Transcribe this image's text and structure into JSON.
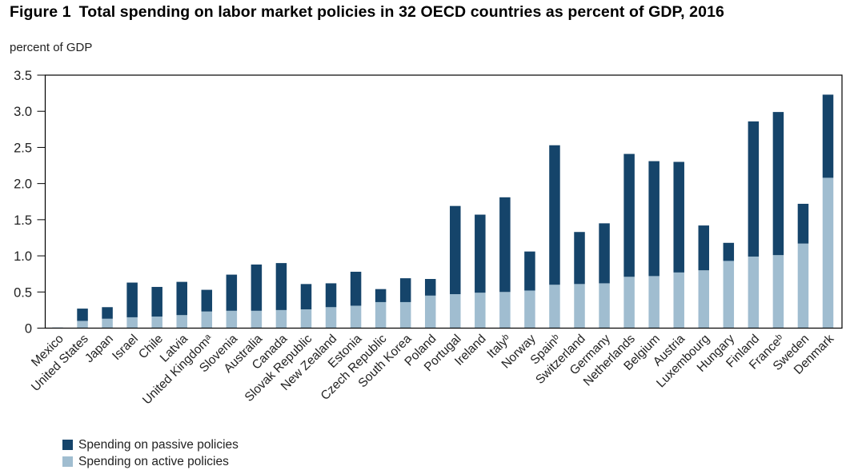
{
  "figure_label": "Figure 1",
  "colors": {
    "passive": "#15446a",
    "active": "#a0bdd0",
    "axis": "#000000"
  },
  "chart_data": {
    "type": "bar",
    "stacked": true,
    "title": "Total spending on labor market policies in 32 OECD countries as percent of GDP, 2016",
    "xlabel": "",
    "ylabel": "percent of GDP",
    "ylim": [
      0,
      3.5
    ],
    "yticks": [
      0,
      0.5,
      1.0,
      1.5,
      2.0,
      2.5,
      3.0,
      3.5
    ],
    "ytick_labels": [
      "0",
      "0.5",
      "1.0",
      "1.5",
      "2.0",
      "2.5",
      "3.0",
      "3.5"
    ],
    "grid": false,
    "legend_position": "bottom-left",
    "categories": [
      "Mexico",
      "United States",
      "Japan",
      "Israel",
      "Chile",
      "Latvia",
      "United Kingdomᵃ",
      "Slovenia",
      "Australia",
      "Canada",
      "Slovak Republic",
      "New Zealand",
      "Estonia",
      "Czech Republic",
      "South Korea",
      "Poland",
      "Portugal",
      "Ireland",
      "Italyᵇ",
      "Norway",
      "Spainᵇ",
      "Switzerland",
      "Germany",
      "Netherlands",
      "Belgium",
      "Austria",
      "Luxembourg",
      "Hungary",
      "Finland",
      "Franceᵇ",
      "Sweden",
      "Denmark"
    ],
    "series": [
      {
        "name": "Spending on active policies",
        "color_key": "active",
        "values": [
          0.01,
          0.1,
          0.13,
          0.15,
          0.16,
          0.18,
          0.23,
          0.24,
          0.24,
          0.25,
          0.26,
          0.29,
          0.31,
          0.36,
          0.36,
          0.45,
          0.47,
          0.49,
          0.5,
          0.52,
          0.6,
          0.61,
          0.62,
          0.71,
          0.72,
          0.77,
          0.8,
          0.93,
          0.99,
          1.01,
          1.17,
          2.08
        ]
      },
      {
        "name": "Spending on passive policies",
        "color_key": "passive",
        "values": [
          0.0,
          0.17,
          0.16,
          0.48,
          0.41,
          0.46,
          0.3,
          0.5,
          0.64,
          0.65,
          0.35,
          0.33,
          0.47,
          0.18,
          0.33,
          0.23,
          1.22,
          1.08,
          1.31,
          0.54,
          1.93,
          0.72,
          0.83,
          1.7,
          1.59,
          1.53,
          0.62,
          0.25,
          1.87,
          1.98,
          0.55,
          1.15
        ]
      }
    ]
  },
  "legend": {
    "items": [
      {
        "label": "Spending on passive policies",
        "color_key": "passive"
      },
      {
        "label": "Spending on active policies",
        "color_key": "active"
      }
    ]
  }
}
